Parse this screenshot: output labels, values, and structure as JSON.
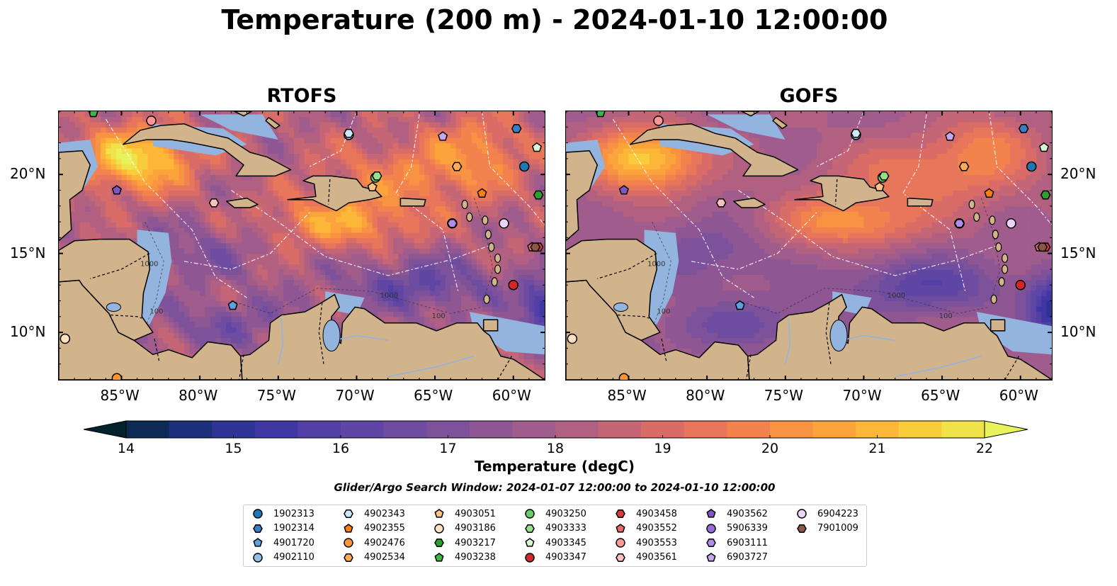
{
  "figure": {
    "title": "Temperature (200 m) - 2024-01-10 12:00:00",
    "panels": [
      {
        "title": "RTOFS"
      },
      {
        "title": "GOFS"
      }
    ],
    "x_ticks": [
      "85°W",
      "80°W",
      "75°W",
      "70°W",
      "65°W",
      "60°W"
    ],
    "y_ticks": [
      "20°N",
      "15°N",
      "10°N"
    ],
    "contour_labels": [
      "100",
      "1000",
      "1000",
      "100"
    ],
    "colorbar": {
      "label": "Temperature (degC)",
      "min": 14,
      "max": 22,
      "ticks": [
        "14",
        "15",
        "16",
        "17",
        "18",
        "19",
        "20",
        "21",
        "22"
      ],
      "extend": "both",
      "colormap": "thermal",
      "colors": [
        "#04212e",
        "#0d2a55",
        "#1c2f79",
        "#2e3394",
        "#3f37a2",
        "#5240a6",
        "#5f46a4",
        "#6e4da0",
        "#7d529a",
        "#8e5794",
        "#9f5c8c",
        "#b26082",
        "#c46675",
        "#d96c67",
        "#e7765a",
        "#f2834d",
        "#f89343",
        "#fca43c",
        "#fdb738",
        "#f9cc3b",
        "#efe24a",
        "#e8f25a"
      ]
    },
    "search_window": "Glider/Argo Search Window: 2024-01-07 12:00:00 to 2024-01-10 12:00:00",
    "map_extent": {
      "lon_min": -89,
      "lon_max": -58,
      "lat_min": 7,
      "lat_max": 24
    },
    "floats": [
      {
        "id": "1902313",
        "color": "#1f77b4",
        "marker": "circle",
        "lon": -59.3,
        "lat": 20.5
      },
      {
        "id": "1902314",
        "color": "#3a7dc2",
        "marker": "hexagon",
        "lon": -59.8,
        "lat": 22.9
      },
      {
        "id": "4901720",
        "color": "#5ca0e0",
        "marker": "pentagon",
        "lon": -77.9,
        "lat": 11.7
      },
      {
        "id": "4902110",
        "color": "#8fc0ea",
        "marker": "circle",
        "lon": -70.5,
        "lat": 22.5
      },
      {
        "id": "4902343",
        "color": "#cfe8f8",
        "marker": "hexagon",
        "lon": -70.5,
        "lat": 22.6
      },
      {
        "id": "4902355",
        "color": "#ff7f0e",
        "marker": "pentagon",
        "lon": -62.0,
        "lat": 18.8
      },
      {
        "id": "4902476",
        "color": "#ff9530",
        "marker": "circle",
        "lon": -85.3,
        "lat": 7.1
      },
      {
        "id": "4902534",
        "color": "#ffaa55",
        "marker": "hexagon",
        "lon": -63.6,
        "lat": 20.5
      },
      {
        "id": "4903051",
        "color": "#ffc285",
        "marker": "pentagon",
        "lon": -69.0,
        "lat": 19.2
      },
      {
        "id": "4903186",
        "color": "#ffe0c0",
        "marker": "circle",
        "lon": -88.6,
        "lat": 9.6
      },
      {
        "id": "4903217",
        "color": "#2ca02c",
        "marker": "hexagon",
        "lon": -58.4,
        "lat": 18.7
      },
      {
        "id": "4903238",
        "color": "#3fb63f",
        "marker": "pentagon",
        "lon": -86.8,
        "lat": 23.9
      },
      {
        "id": "4903250",
        "color": "#6acb6a",
        "marker": "circle",
        "lon": -68.8,
        "lat": 19.8
      },
      {
        "id": "4903333",
        "color": "#98df8a",
        "marker": "hexagon",
        "lon": -68.7,
        "lat": 19.9
      },
      {
        "id": "4903345",
        "color": "#d8f8d0",
        "marker": "pentagon",
        "lon": -58.5,
        "lat": 21.7
      },
      {
        "id": "4903347",
        "color": "#d62728",
        "marker": "circle",
        "lon": -60.0,
        "lat": 13.0
      },
      {
        "id": "4903458",
        "color": "#d83a3a",
        "marker": "hexagon",
        "lon": -58.4,
        "lat": 15.4
      },
      {
        "id": "4903552",
        "color": "#ea6a6a",
        "marker": "pentagon",
        "lon": -58.8,
        "lat": 15.4
      },
      {
        "id": "4903553",
        "color": "#ff9896",
        "marker": "circle",
        "lon": -83.1,
        "lat": 23.4
      },
      {
        "id": "4903561",
        "color": "#ffc0c0",
        "marker": "hexagon",
        "lon": -79.1,
        "lat": 18.2
      },
      {
        "id": "4903562",
        "color": "#7e55c2",
        "marker": "pentagon",
        "lon": -85.3,
        "lat": 19.0
      },
      {
        "id": "5906339",
        "color": "#9a6ad8",
        "marker": "circle",
        "lon": -63.9,
        "lat": 16.9
      },
      {
        "id": "6903111",
        "color": "#b28cec",
        "marker": "hexagon",
        "lon": -63.9,
        "lat": 16.9
      },
      {
        "id": "6903727",
        "color": "#c9a6f2",
        "marker": "pentagon",
        "lon": -64.5,
        "lat": 22.4
      },
      {
        "id": "6904223",
        "color": "#ebd4f8",
        "marker": "circle",
        "lon": -60.6,
        "lat": 16.9
      },
      {
        "id": "7901009",
        "color": "#8c564b",
        "marker": "hexagon",
        "lon": -58.6,
        "lat": 15.4
      }
    ]
  }
}
